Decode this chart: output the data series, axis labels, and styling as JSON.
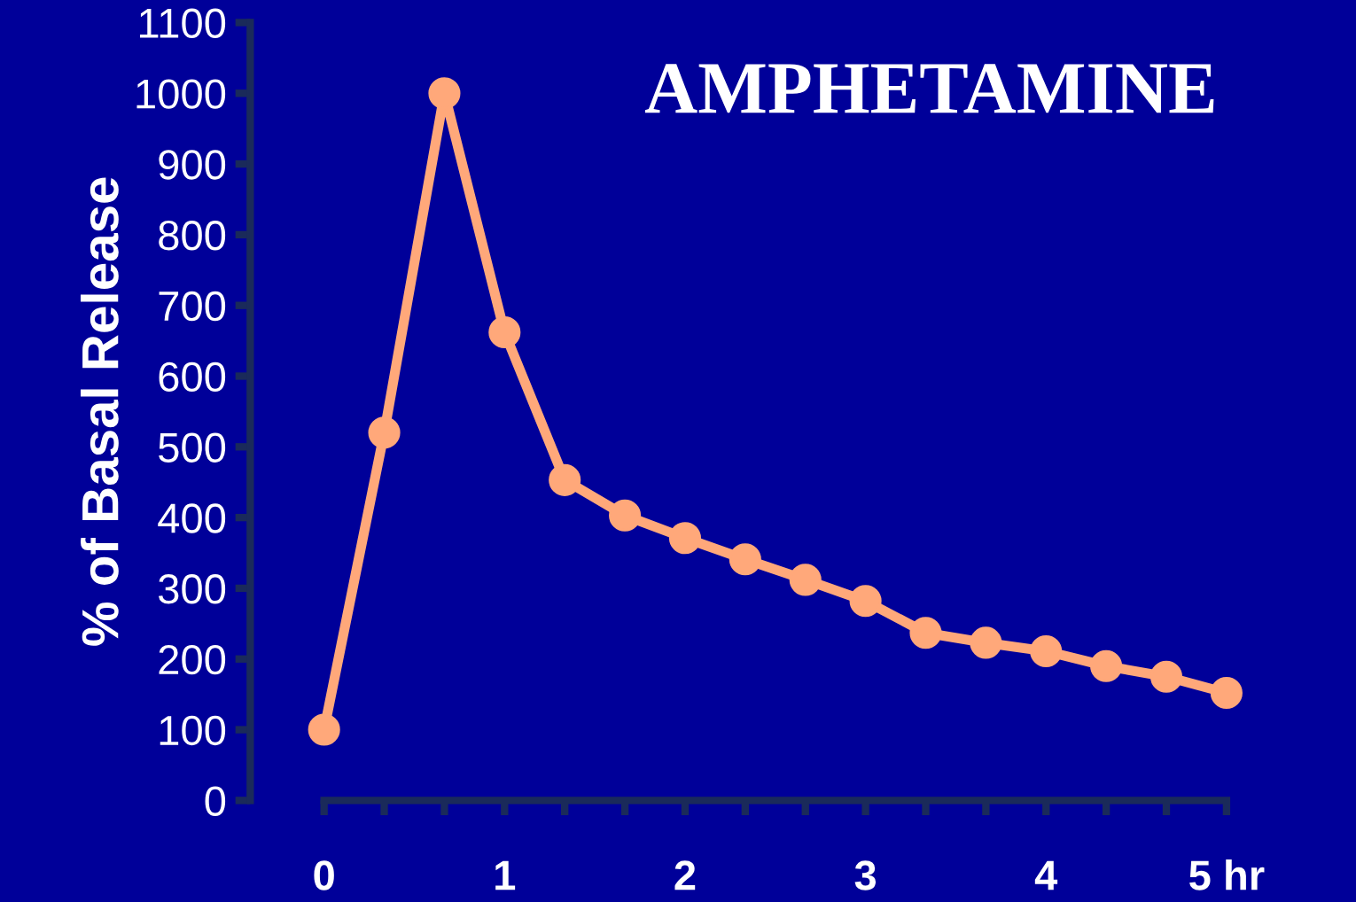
{
  "chart_data": {
    "type": "line",
    "title": "AMPHETAMINE",
    "ylabel": "% of Basal Release",
    "x": [
      0,
      0.3333,
      0.6667,
      1,
      1.3333,
      1.6667,
      2,
      2.3333,
      2.6667,
      3,
      3.3333,
      3.6667,
      4,
      4.3333,
      4.6667,
      5
    ],
    "series": [
      {
        "color": "#ffa87a",
        "values": [
          100,
          520,
          1000,
          662,
          453,
          403,
          371,
          341,
          312,
          282,
          237,
          223,
          211,
          190,
          175,
          152
        ]
      }
    ],
    "xlim": [
      0,
      5
    ],
    "ylim": [
      0,
      1100
    ],
    "xticks": [
      0,
      {
        "value": 0.3333,
        "label": null
      },
      {
        "value": 0.6667,
        "label": null
      },
      1,
      {
        "value": 1.3333,
        "label": null
      },
      {
        "value": 1.6667,
        "label": null
      },
      2,
      {
        "value": 2.3333,
        "label": null
      },
      {
        "value": 2.6667,
        "label": null
      },
      3,
      {
        "value": 3.3333,
        "label": null
      },
      {
        "value": 3.6667,
        "label": null
      },
      4,
      {
        "value": 4.3333,
        "label": null
      },
      {
        "value": 4.6667,
        "label": null
      },
      {
        "value": 5,
        "label": "5 hr"
      }
    ],
    "yticks": [
      0,
      100,
      200,
      300,
      400,
      500,
      600,
      700,
      800,
      900,
      1000,
      1100
    ],
    "marker": "circle",
    "line_style": "solid"
  }
}
